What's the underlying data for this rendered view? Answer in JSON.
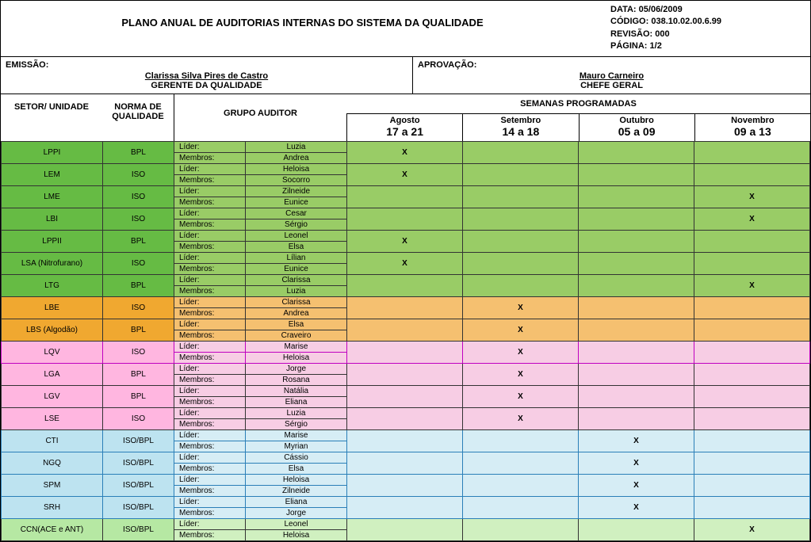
{
  "header": {
    "title": "PLANO ANUAL DE AUDITORIAS INTERNAS DO SISTEMA DA QUALIDADE",
    "meta": {
      "data_label": "DATA:",
      "data_value": "05/06/2009",
      "codigo_label": "CÓDIGO:",
      "codigo_value": "038.10.02.00.6.99",
      "revisao_label": "REVISÃO:",
      "revisao_value": "000",
      "pagina_label": "PÁGINA:",
      "pagina_value": "1/2"
    }
  },
  "approval": {
    "emissao_label": "EMISSÃO:",
    "emissao_name": "Clarissa Silva Pires de Castro",
    "emissao_role": "GERENTE DA QUALIDADE",
    "aprovacao_label": "APROVAÇÃO:",
    "aprovacao_name": "Mauro Carneiro",
    "aprovacao_role": "CHEFE GERAL"
  },
  "columns": {
    "sector": "SETOR/ UNIDADE",
    "norm": "NORMA DE QUALIDADE",
    "group": "GRUPO AUDITOR",
    "weeks_title": "SEMANAS PROGRAMADAS",
    "months": [
      {
        "name": "Agosto",
        "range": "17 a 21"
      },
      {
        "name": "Setembro",
        "range": "14 a 18"
      },
      {
        "name": "Outubro",
        "range": "05 a 09"
      },
      {
        "name": "Novembro",
        "range": "09 a 13"
      }
    ]
  },
  "labels": {
    "lider": "Líder:",
    "membros": "Membros:"
  },
  "rows": [
    {
      "sector": "LPPI",
      "norm": "BPL",
      "lider": "Luzia",
      "membro": "Andrea",
      "marks": [
        "X",
        "",
        "",
        ""
      ],
      "cls": "g1",
      "cls2": "g2"
    },
    {
      "sector": "LEM",
      "norm": "ISO",
      "lider": "Heloisa",
      "membro": "Socorro",
      "marks": [
        "X",
        "",
        "",
        ""
      ],
      "cls": "g1",
      "cls2": "g2"
    },
    {
      "sector": "LME",
      "norm": "ISO",
      "lider": "Zilneide",
      "membro": "Eunice",
      "marks": [
        "",
        "",
        "",
        "X"
      ],
      "cls": "g1",
      "cls2": "g2"
    },
    {
      "sector": "LBI",
      "norm": "ISO",
      "lider": "Cesar",
      "membro": "Sérgio",
      "marks": [
        "",
        "",
        "",
        "X"
      ],
      "cls": "g1",
      "cls2": "g2"
    },
    {
      "sector": "LPPII",
      "norm": "BPL",
      "lider": "Leonel",
      "membro": "Elsa",
      "marks": [
        "X",
        "",
        "",
        ""
      ],
      "cls": "g1",
      "cls2": "g2"
    },
    {
      "sector": "LSA (Nitrofurano)",
      "norm": "ISO",
      "lider": "Lílian",
      "membro": "Eunice",
      "marks": [
        "X",
        "",
        "",
        ""
      ],
      "cls": "g1",
      "cls2": "g2",
      "single_sector": true
    },
    {
      "sector": "LTG",
      "norm": "BPL",
      "lider": "Clarissa",
      "membro": "Luzia",
      "marks": [
        "",
        "",
        "",
        "X"
      ],
      "cls": "g1",
      "cls2": "g2",
      "single_sector": true
    },
    {
      "sector": "LBE",
      "norm": "ISO",
      "lider": "Clarissa",
      "membro": "Andrea",
      "marks": [
        "",
        "X",
        "",
        ""
      ],
      "cls": "g3",
      "cls2": "g4"
    },
    {
      "sector": "LBS (Algodão)",
      "norm": "BPL",
      "lider": "Elsa",
      "membro": "Craveiro",
      "marks": [
        "",
        "X",
        "",
        ""
      ],
      "cls": "g3",
      "cls2": "g4"
    },
    {
      "sector": "LQV",
      "norm": "ISO",
      "lider": "Marise",
      "membro": "Heloisa",
      "marks": [
        "",
        "X",
        "",
        ""
      ],
      "cls": "g5",
      "cls2": "g6",
      "border": "b-mag"
    },
    {
      "sector": "LGA",
      "norm": "BPL",
      "lider": "Jorge",
      "membro": "Rosana",
      "marks": [
        "",
        "X",
        "",
        ""
      ],
      "cls": "g5",
      "cls2": "g6"
    },
    {
      "sector": "LGV",
      "norm": "BPL",
      "lider": "Natália",
      "membro": "Eliana",
      "marks": [
        "",
        "X",
        "",
        ""
      ],
      "cls": "g5",
      "cls2": "g6"
    },
    {
      "sector": "LSE",
      "norm": "ISO",
      "lider": "Luzia",
      "membro": "Sérgio",
      "marks": [
        "",
        "X",
        "",
        ""
      ],
      "cls": "g5",
      "cls2": "g6"
    },
    {
      "sector": "CTI",
      "norm": "ISO/BPL",
      "lider": "Marise",
      "membro": "Myrian",
      "marks": [
        "",
        "",
        "X",
        ""
      ],
      "cls": "g7",
      "cls2": "g8",
      "border": "b-blue"
    },
    {
      "sector": "NGQ",
      "norm": "ISO/BPL",
      "lider": "Cássio",
      "membro": "Elsa",
      "marks": [
        "",
        "",
        "X",
        ""
      ],
      "cls": "g7",
      "cls2": "g8",
      "border": "b-blue"
    },
    {
      "sector": "SPM",
      "norm": "ISO/BPL",
      "lider": "Heloisa",
      "membro": "Zilneide",
      "marks": [
        "",
        "",
        "X",
        ""
      ],
      "cls": "g7",
      "cls2": "g8",
      "border": "b-blue"
    },
    {
      "sector": "SRH",
      "norm": "ISO/BPL",
      "lider": "Eliana",
      "membro": "Jorge",
      "marks": [
        "",
        "",
        "X",
        ""
      ],
      "cls": "g7",
      "cls2": "g8",
      "border": "b-blue"
    },
    {
      "sector": "CCN(ACE e ANT)",
      "norm": "ISO/BPL",
      "lider": "Leonel",
      "membro": "Heloisa",
      "marks": [
        "",
        "",
        "",
        "X"
      ],
      "cls": "g9",
      "cls2": "g10"
    }
  ]
}
